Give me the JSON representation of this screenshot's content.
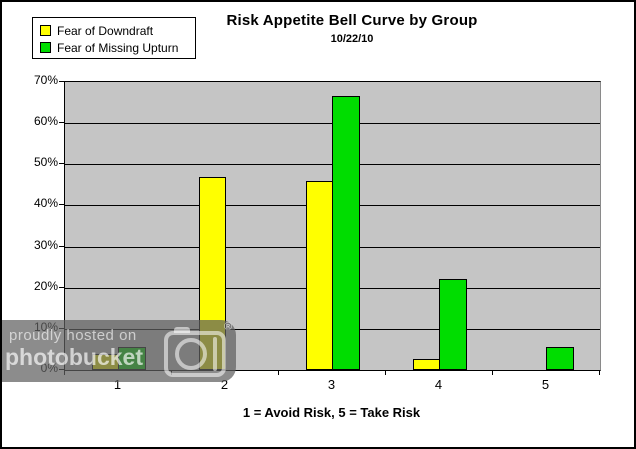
{
  "chart_data": {
    "type": "bar",
    "title": "Risk Appetite Bell Curve by Group",
    "subtitle": "10/22/10",
    "categories": [
      "1",
      "2",
      "3",
      "4",
      "5"
    ],
    "series": [
      {
        "name": "Fear of Downdraft",
        "color": "#FFFF00",
        "values": [
          4,
          47,
          46,
          2.7,
          0
        ]
      },
      {
        "name": "Fear of Missing Upturn",
        "color": "#00DD00",
        "values": [
          5.5,
          0,
          66.5,
          22,
          5.5
        ]
      }
    ],
    "xlabel": "1 = Avoid Risk, 5 = Take Risk",
    "ylabel": "",
    "ylim": [
      0,
      70
    ],
    "ytick_step": 10,
    "ytick_labels": [
      "0%",
      "10%",
      "20%",
      "30%",
      "40%",
      "50%",
      "60%",
      "70%"
    ],
    "grid": true,
    "legend_position": "top-left",
    "plot_background": "#C5C5C5",
    "bar_border_color": "#000000"
  },
  "watermark": {
    "hosted_text": "proudly hosted on",
    "brand": "photobucket",
    "registered_mark": "®"
  }
}
